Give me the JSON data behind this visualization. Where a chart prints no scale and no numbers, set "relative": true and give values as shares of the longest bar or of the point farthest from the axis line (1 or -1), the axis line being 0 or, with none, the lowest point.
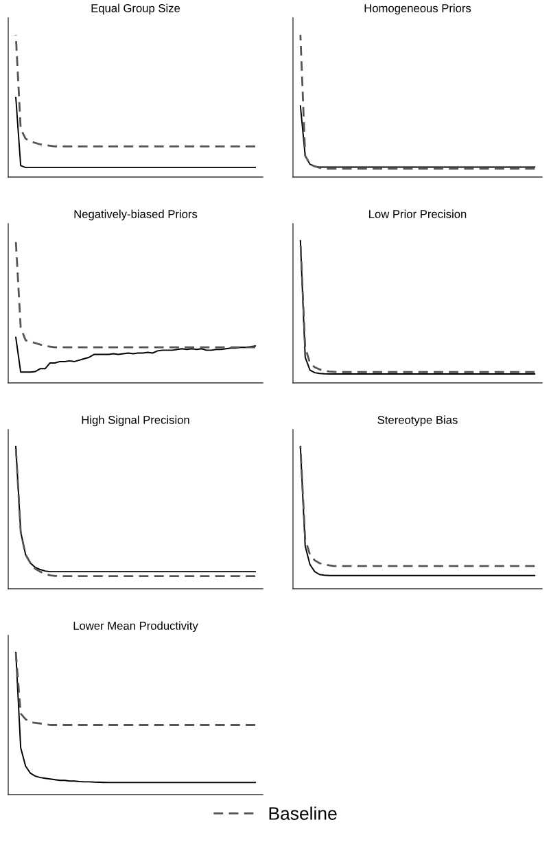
{
  "chart_data": [
    {
      "type": "line",
      "title": "Equal Group Size",
      "relative": true,
      "categories": [
        null,
        null,
        null,
        null,
        null,
        null,
        null,
        null,
        null,
        null,
        null,
        null,
        null,
        null,
        null,
        null,
        null,
        null,
        null,
        null,
        null,
        null,
        null,
        null,
        null,
        null,
        null,
        null,
        null,
        null,
        null,
        null,
        null,
        null,
        null,
        null,
        null,
        null,
        null,
        null,
        null,
        null,
        null,
        null,
        null,
        null,
        null,
        null,
        null,
        null
      ],
      "series": [
        {
          "color": "#000000",
          "line_style": "solid",
          "values": [
            0.56,
            0.08,
            0.067,
            0.067,
            0.067,
            0.067,
            0.067,
            0.067,
            0.067,
            0.067,
            0.067,
            0.067,
            0.067,
            0.067,
            0.067,
            0.067,
            0.067,
            0.067,
            0.067,
            0.067,
            0.067,
            0.067,
            0.067,
            0.067,
            0.067,
            0.067,
            0.067,
            0.067,
            0.067,
            0.067,
            0.067,
            0.067,
            0.067,
            0.067,
            0.067,
            0.067,
            0.067,
            0.067,
            0.067,
            0.067,
            0.067,
            0.067,
            0.067,
            0.067,
            0.067,
            0.067,
            0.067,
            0.067,
            0.067,
            0.067
          ]
        },
        {
          "color": "#555555",
          "line_style": "dashed",
          "values": [
            1.0,
            0.34,
            0.27,
            0.25,
            0.24,
            0.23,
            0.225,
            0.22,
            0.215,
            0.215,
            0.215,
            0.215,
            0.215,
            0.215,
            0.215,
            0.215,
            0.215,
            0.215,
            0.215,
            0.215,
            0.215,
            0.215,
            0.215,
            0.215,
            0.215,
            0.215,
            0.215,
            0.215,
            0.215,
            0.215,
            0.215,
            0.215,
            0.215,
            0.215,
            0.215,
            0.215,
            0.215,
            0.215,
            0.215,
            0.215,
            0.215,
            0.215,
            0.215,
            0.215,
            0.215,
            0.215,
            0.215,
            0.215,
            0.215,
            0.215
          ]
        }
      ]
    },
    {
      "type": "line",
      "title": "Homogeneous Priors",
      "relative": true,
      "categories": [
        null,
        null,
        null,
        null,
        null,
        null,
        null,
        null,
        null,
        null,
        null,
        null,
        null,
        null,
        null,
        null,
        null,
        null,
        null,
        null,
        null,
        null,
        null,
        null,
        null,
        null,
        null,
        null,
        null,
        null,
        null,
        null,
        null,
        null,
        null,
        null,
        null,
        null,
        null,
        null,
        null,
        null,
        null,
        null,
        null,
        null,
        null,
        null,
        null,
        null
      ],
      "series": [
        {
          "color": "#000000",
          "line_style": "solid",
          "values": [
            0.5,
            0.15,
            0.09,
            0.075,
            0.07,
            0.07,
            0.07,
            0.07,
            0.07,
            0.07,
            0.07,
            0.07,
            0.07,
            0.07,
            0.07,
            0.07,
            0.07,
            0.07,
            0.07,
            0.07,
            0.07,
            0.07,
            0.07,
            0.07,
            0.07,
            0.07,
            0.07,
            0.07,
            0.07,
            0.07,
            0.07,
            0.07,
            0.07,
            0.07,
            0.07,
            0.07,
            0.07,
            0.07,
            0.07,
            0.07,
            0.07,
            0.07,
            0.07,
            0.07,
            0.07,
            0.07,
            0.07,
            0.07,
            0.07,
            0.07
          ]
        },
        {
          "color": "#555555",
          "line_style": "dashed",
          "values": [
            1.0,
            0.15,
            0.09,
            0.075,
            0.065,
            0.06,
            0.058,
            0.058,
            0.058,
            0.058,
            0.058,
            0.058,
            0.058,
            0.058,
            0.058,
            0.058,
            0.058,
            0.058,
            0.058,
            0.058,
            0.058,
            0.058,
            0.058,
            0.058,
            0.058,
            0.058,
            0.058,
            0.058,
            0.058,
            0.058,
            0.058,
            0.058,
            0.058,
            0.058,
            0.058,
            0.058,
            0.058,
            0.058,
            0.058,
            0.058,
            0.058,
            0.058,
            0.058,
            0.058,
            0.058,
            0.058,
            0.058,
            0.058,
            0.058,
            0.058
          ]
        }
      ]
    },
    {
      "type": "line",
      "title": "Negatively-biased Priors",
      "relative": true,
      "categories": [
        null,
        null,
        null,
        null,
        null,
        null,
        null,
        null,
        null,
        null,
        null,
        null,
        null,
        null,
        null,
        null,
        null,
        null,
        null,
        null,
        null,
        null,
        null,
        null,
        null,
        null,
        null,
        null,
        null,
        null,
        null,
        null,
        null,
        null,
        null,
        null,
        null,
        null,
        null,
        null,
        null,
        null,
        null,
        null,
        null,
        null,
        null,
        null,
        null,
        null
      ],
      "series": [
        {
          "color": "#000000",
          "line_style": "solid",
          "values": [
            0.32,
            0.076,
            0.076,
            0.076,
            0.08,
            0.1,
            0.1,
            0.14,
            0.14,
            0.15,
            0.15,
            0.155,
            0.15,
            0.16,
            0.17,
            0.18,
            0.2,
            0.2,
            0.2,
            0.2,
            0.205,
            0.2,
            0.205,
            0.21,
            0.205,
            0.21,
            0.21,
            0.215,
            0.21,
            0.225,
            0.23,
            0.23,
            0.23,
            0.235,
            0.24,
            0.235,
            0.24,
            0.235,
            0.24,
            0.23,
            0.23,
            0.235,
            0.235,
            0.24,
            0.245,
            0.245,
            0.25,
            0.25,
            0.255,
            0.26
          ]
        },
        {
          "color": "#555555",
          "line_style": "dashed",
          "values": [
            1.0,
            0.39,
            0.3,
            0.29,
            0.28,
            0.27,
            0.26,
            0.255,
            0.25,
            0.25,
            0.25,
            0.25,
            0.25,
            0.25,
            0.25,
            0.25,
            0.25,
            0.25,
            0.25,
            0.25,
            0.25,
            0.25,
            0.25,
            0.25,
            0.25,
            0.25,
            0.25,
            0.25,
            0.25,
            0.25,
            0.25,
            0.25,
            0.25,
            0.25,
            0.25,
            0.25,
            0.25,
            0.25,
            0.25,
            0.25,
            0.25,
            0.25,
            0.25,
            0.25,
            0.25,
            0.25,
            0.25,
            0.25,
            0.25,
            0.25
          ]
        }
      ]
    },
    {
      "type": "line",
      "title": "Low Prior Precision",
      "relative": true,
      "categories": [
        null,
        null,
        null,
        null,
        null,
        null,
        null,
        null,
        null,
        null,
        null,
        null,
        null,
        null,
        null,
        null,
        null,
        null,
        null,
        null,
        null,
        null,
        null,
        null,
        null,
        null,
        null,
        null,
        null,
        null,
        null,
        null,
        null,
        null,
        null,
        null,
        null,
        null,
        null,
        null,
        null,
        null,
        null,
        null,
        null,
        null,
        null,
        null,
        null,
        null
      ],
      "series": [
        {
          "color": "#000000",
          "line_style": "solid",
          "values": [
            1.0,
            0.18,
            0.09,
            0.072,
            0.066,
            0.064,
            0.063,
            0.063,
            0.063,
            0.063,
            0.063,
            0.063,
            0.063,
            0.063,
            0.063,
            0.063,
            0.063,
            0.063,
            0.063,
            0.063,
            0.063,
            0.063,
            0.063,
            0.063,
            0.063,
            0.063,
            0.063,
            0.063,
            0.063,
            0.063,
            0.063,
            0.063,
            0.063,
            0.063,
            0.063,
            0.063,
            0.063,
            0.063,
            0.063,
            0.063,
            0.063,
            0.063,
            0.063,
            0.063,
            0.063,
            0.063,
            0.063,
            0.063,
            0.063,
            0.063
          ]
        },
        {
          "color": "#555555",
          "line_style": "dashed",
          "values": [
            1.0,
            0.25,
            0.14,
            0.11,
            0.095,
            0.085,
            0.08,
            0.078,
            0.076,
            0.076,
            0.076,
            0.076,
            0.076,
            0.076,
            0.076,
            0.076,
            0.076,
            0.076,
            0.076,
            0.076,
            0.076,
            0.076,
            0.076,
            0.076,
            0.076,
            0.076,
            0.076,
            0.076,
            0.076,
            0.076,
            0.076,
            0.076,
            0.076,
            0.076,
            0.076,
            0.076,
            0.076,
            0.076,
            0.076,
            0.076,
            0.076,
            0.076,
            0.076,
            0.076,
            0.076,
            0.076,
            0.076,
            0.076,
            0.076,
            0.076
          ]
        }
      ]
    },
    {
      "type": "line",
      "title": "High Signal Precision",
      "relative": true,
      "categories": [
        null,
        null,
        null,
        null,
        null,
        null,
        null,
        null,
        null,
        null,
        null,
        null,
        null,
        null,
        null,
        null,
        null,
        null,
        null,
        null,
        null,
        null,
        null,
        null,
        null,
        null,
        null,
        null,
        null,
        null,
        null,
        null,
        null,
        null,
        null,
        null,
        null,
        null,
        null,
        null,
        null,
        null,
        null,
        null,
        null,
        null,
        null,
        null,
        null,
        null
      ],
      "series": [
        {
          "color": "#000000",
          "line_style": "solid",
          "values": [
            1.0,
            0.4,
            0.24,
            0.18,
            0.15,
            0.135,
            0.125,
            0.12,
            0.12,
            0.12,
            0.12,
            0.12,
            0.12,
            0.12,
            0.12,
            0.12,
            0.12,
            0.12,
            0.12,
            0.12,
            0.12,
            0.12,
            0.12,
            0.12,
            0.12,
            0.12,
            0.12,
            0.12,
            0.12,
            0.12,
            0.12,
            0.12,
            0.12,
            0.12,
            0.12,
            0.12,
            0.12,
            0.12,
            0.12,
            0.12,
            0.12,
            0.12,
            0.12,
            0.12,
            0.12,
            0.12,
            0.12,
            0.12,
            0.12,
            0.12
          ]
        },
        {
          "color": "#555555",
          "line_style": "dashed",
          "values": [
            1.0,
            0.4,
            0.24,
            0.18,
            0.14,
            0.12,
            0.105,
            0.095,
            0.09,
            0.089,
            0.089,
            0.089,
            0.089,
            0.089,
            0.089,
            0.089,
            0.089,
            0.089,
            0.089,
            0.089,
            0.089,
            0.089,
            0.089,
            0.089,
            0.089,
            0.089,
            0.089,
            0.089,
            0.089,
            0.089,
            0.089,
            0.089,
            0.089,
            0.089,
            0.089,
            0.089,
            0.089,
            0.089,
            0.089,
            0.089,
            0.089,
            0.089,
            0.089,
            0.089,
            0.089,
            0.089,
            0.089,
            0.089,
            0.089,
            0.089
          ]
        }
      ]
    },
    {
      "type": "line",
      "title": "Stereotype Bias",
      "relative": true,
      "categories": [
        null,
        null,
        null,
        null,
        null,
        null,
        null,
        null,
        null,
        null,
        null,
        null,
        null,
        null,
        null,
        null,
        null,
        null,
        null,
        null,
        null,
        null,
        null,
        null,
        null,
        null,
        null,
        null,
        null,
        null,
        null,
        null,
        null,
        null,
        null,
        null,
        null,
        null,
        null,
        null,
        null,
        null,
        null,
        null,
        null,
        null,
        null,
        null,
        null,
        null
      ],
      "series": [
        {
          "color": "#000000",
          "line_style": "solid",
          "values": [
            1.0,
            0.3,
            0.17,
            0.12,
            0.1,
            0.095,
            0.093,
            0.093,
            0.093,
            0.093,
            0.093,
            0.093,
            0.093,
            0.093,
            0.093,
            0.093,
            0.093,
            0.093,
            0.093,
            0.093,
            0.093,
            0.093,
            0.093,
            0.093,
            0.093,
            0.093,
            0.093,
            0.093,
            0.093,
            0.093,
            0.093,
            0.093,
            0.093,
            0.093,
            0.093,
            0.093,
            0.093,
            0.093,
            0.093,
            0.093,
            0.093,
            0.093,
            0.093,
            0.093,
            0.093,
            0.093,
            0.093,
            0.093,
            0.093,
            0.093
          ]
        },
        {
          "color": "#555555",
          "line_style": "dashed",
          "values": [
            1.0,
            0.35,
            0.24,
            0.2,
            0.18,
            0.17,
            0.165,
            0.16,
            0.16,
            0.16,
            0.16,
            0.16,
            0.16,
            0.16,
            0.16,
            0.16,
            0.16,
            0.16,
            0.16,
            0.16,
            0.16,
            0.16,
            0.16,
            0.16,
            0.16,
            0.16,
            0.16,
            0.16,
            0.16,
            0.16,
            0.16,
            0.16,
            0.16,
            0.16,
            0.16,
            0.16,
            0.16,
            0.16,
            0.16,
            0.16,
            0.16,
            0.16,
            0.16,
            0.16,
            0.16,
            0.16,
            0.16,
            0.16,
            0.16,
            0.16
          ]
        }
      ]
    },
    {
      "type": "line",
      "title": "Lower Mean Productivity",
      "relative": true,
      "legend": "bottom",
      "categories": [
        null,
        null,
        null,
        null,
        null,
        null,
        null,
        null,
        null,
        null,
        null,
        null,
        null,
        null,
        null,
        null,
        null,
        null,
        null,
        null,
        null,
        null,
        null,
        null,
        null,
        null,
        null,
        null,
        null,
        null,
        null,
        null,
        null,
        null,
        null,
        null,
        null,
        null,
        null,
        null,
        null,
        null,
        null,
        null,
        null,
        null,
        null,
        null,
        null,
        null
      ],
      "series": [
        {
          "color": "#000000",
          "line_style": "solid",
          "values": [
            1.0,
            0.33,
            0.2,
            0.15,
            0.13,
            0.12,
            0.115,
            0.11,
            0.105,
            0.1,
            0.1,
            0.095,
            0.095,
            0.092,
            0.09,
            0.09,
            0.088,
            0.087,
            0.086,
            0.085,
            0.085,
            0.085,
            0.085,
            0.085,
            0.085,
            0.085,
            0.085,
            0.085,
            0.085,
            0.085,
            0.085,
            0.085,
            0.085,
            0.085,
            0.085,
            0.085,
            0.085,
            0.085,
            0.085,
            0.085,
            0.085,
            0.085,
            0.085,
            0.085,
            0.085,
            0.085,
            0.085,
            0.085,
            0.085,
            0.085
          ]
        },
        {
          "name": "Baseline",
          "color": "#555555",
          "line_style": "dashed",
          "values": [
            1.0,
            0.57,
            0.53,
            0.51,
            0.505,
            0.5,
            0.495,
            0.49,
            0.49,
            0.49,
            0.49,
            0.49,
            0.49,
            0.49,
            0.49,
            0.49,
            0.49,
            0.49,
            0.49,
            0.49,
            0.49,
            0.49,
            0.49,
            0.49,
            0.49,
            0.49,
            0.49,
            0.49,
            0.49,
            0.49,
            0.49,
            0.49,
            0.49,
            0.49,
            0.49,
            0.49,
            0.49,
            0.49,
            0.49,
            0.49,
            0.49,
            0.49,
            0.49,
            0.49,
            0.49,
            0.49,
            0.49,
            0.49,
            0.49,
            0.49
          ]
        }
      ]
    }
  ]
}
